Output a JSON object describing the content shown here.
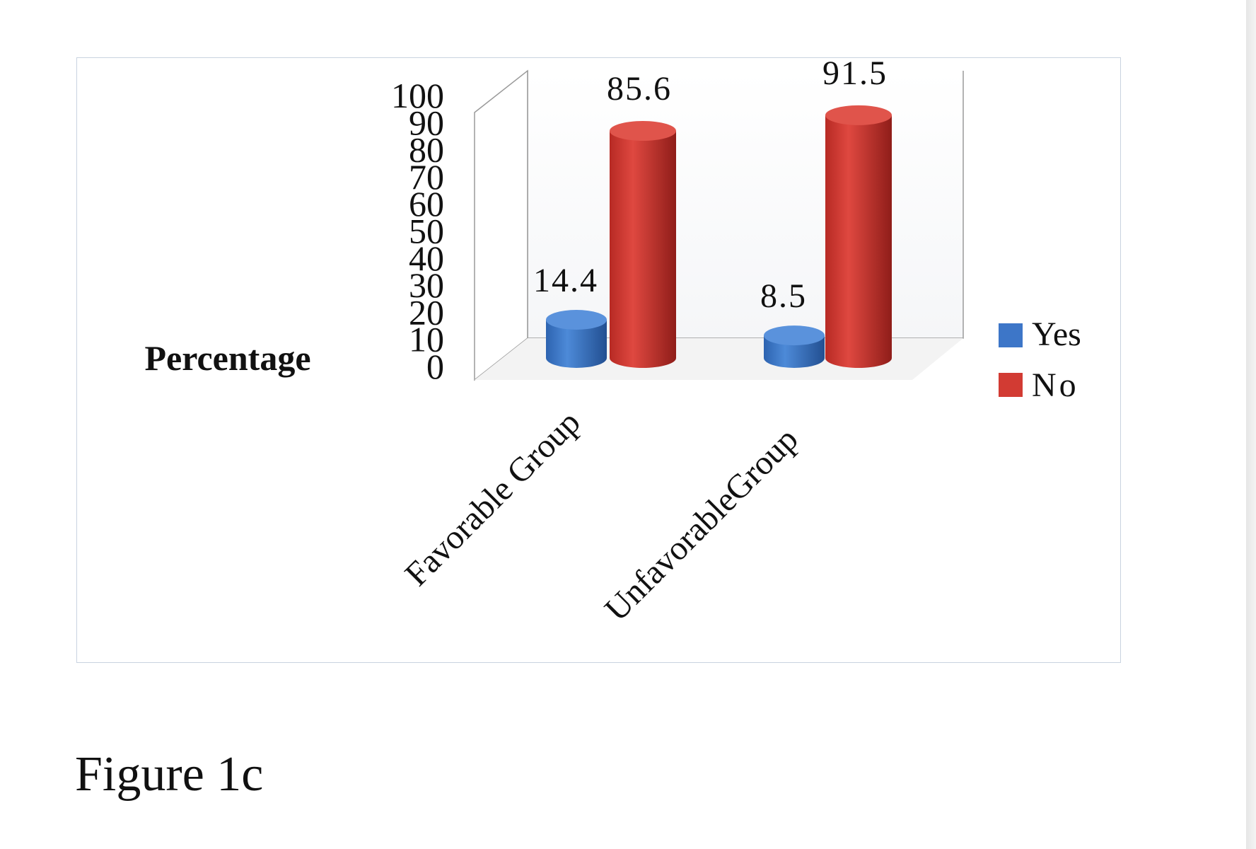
{
  "caption": "Figure 1c",
  "chart_data": {
    "type": "bar",
    "three_d": true,
    "bar_shape": "cylinder",
    "categories": [
      "Favorable Group",
      "UnfavorableGroup"
    ],
    "series": [
      {
        "name": "Yes",
        "values": [
          14.4,
          8.5
        ],
        "color": "#3d76c8"
      },
      {
        "name": "No",
        "values": [
          85.6,
          91.5
        ],
        "color": "#d23b33"
      }
    ],
    "data_labels": [
      [
        "14.4",
        "8.5"
      ],
      [
        "85.6",
        "91.5"
      ]
    ],
    "ylabel": "Percentage",
    "yticks": [
      "0",
      "10",
      "20",
      "30",
      "40",
      "50",
      "60",
      "70",
      "80",
      "90",
      "100"
    ],
    "ylim": [
      0,
      100
    ],
    "grid": false,
    "legend_position": "right"
  }
}
